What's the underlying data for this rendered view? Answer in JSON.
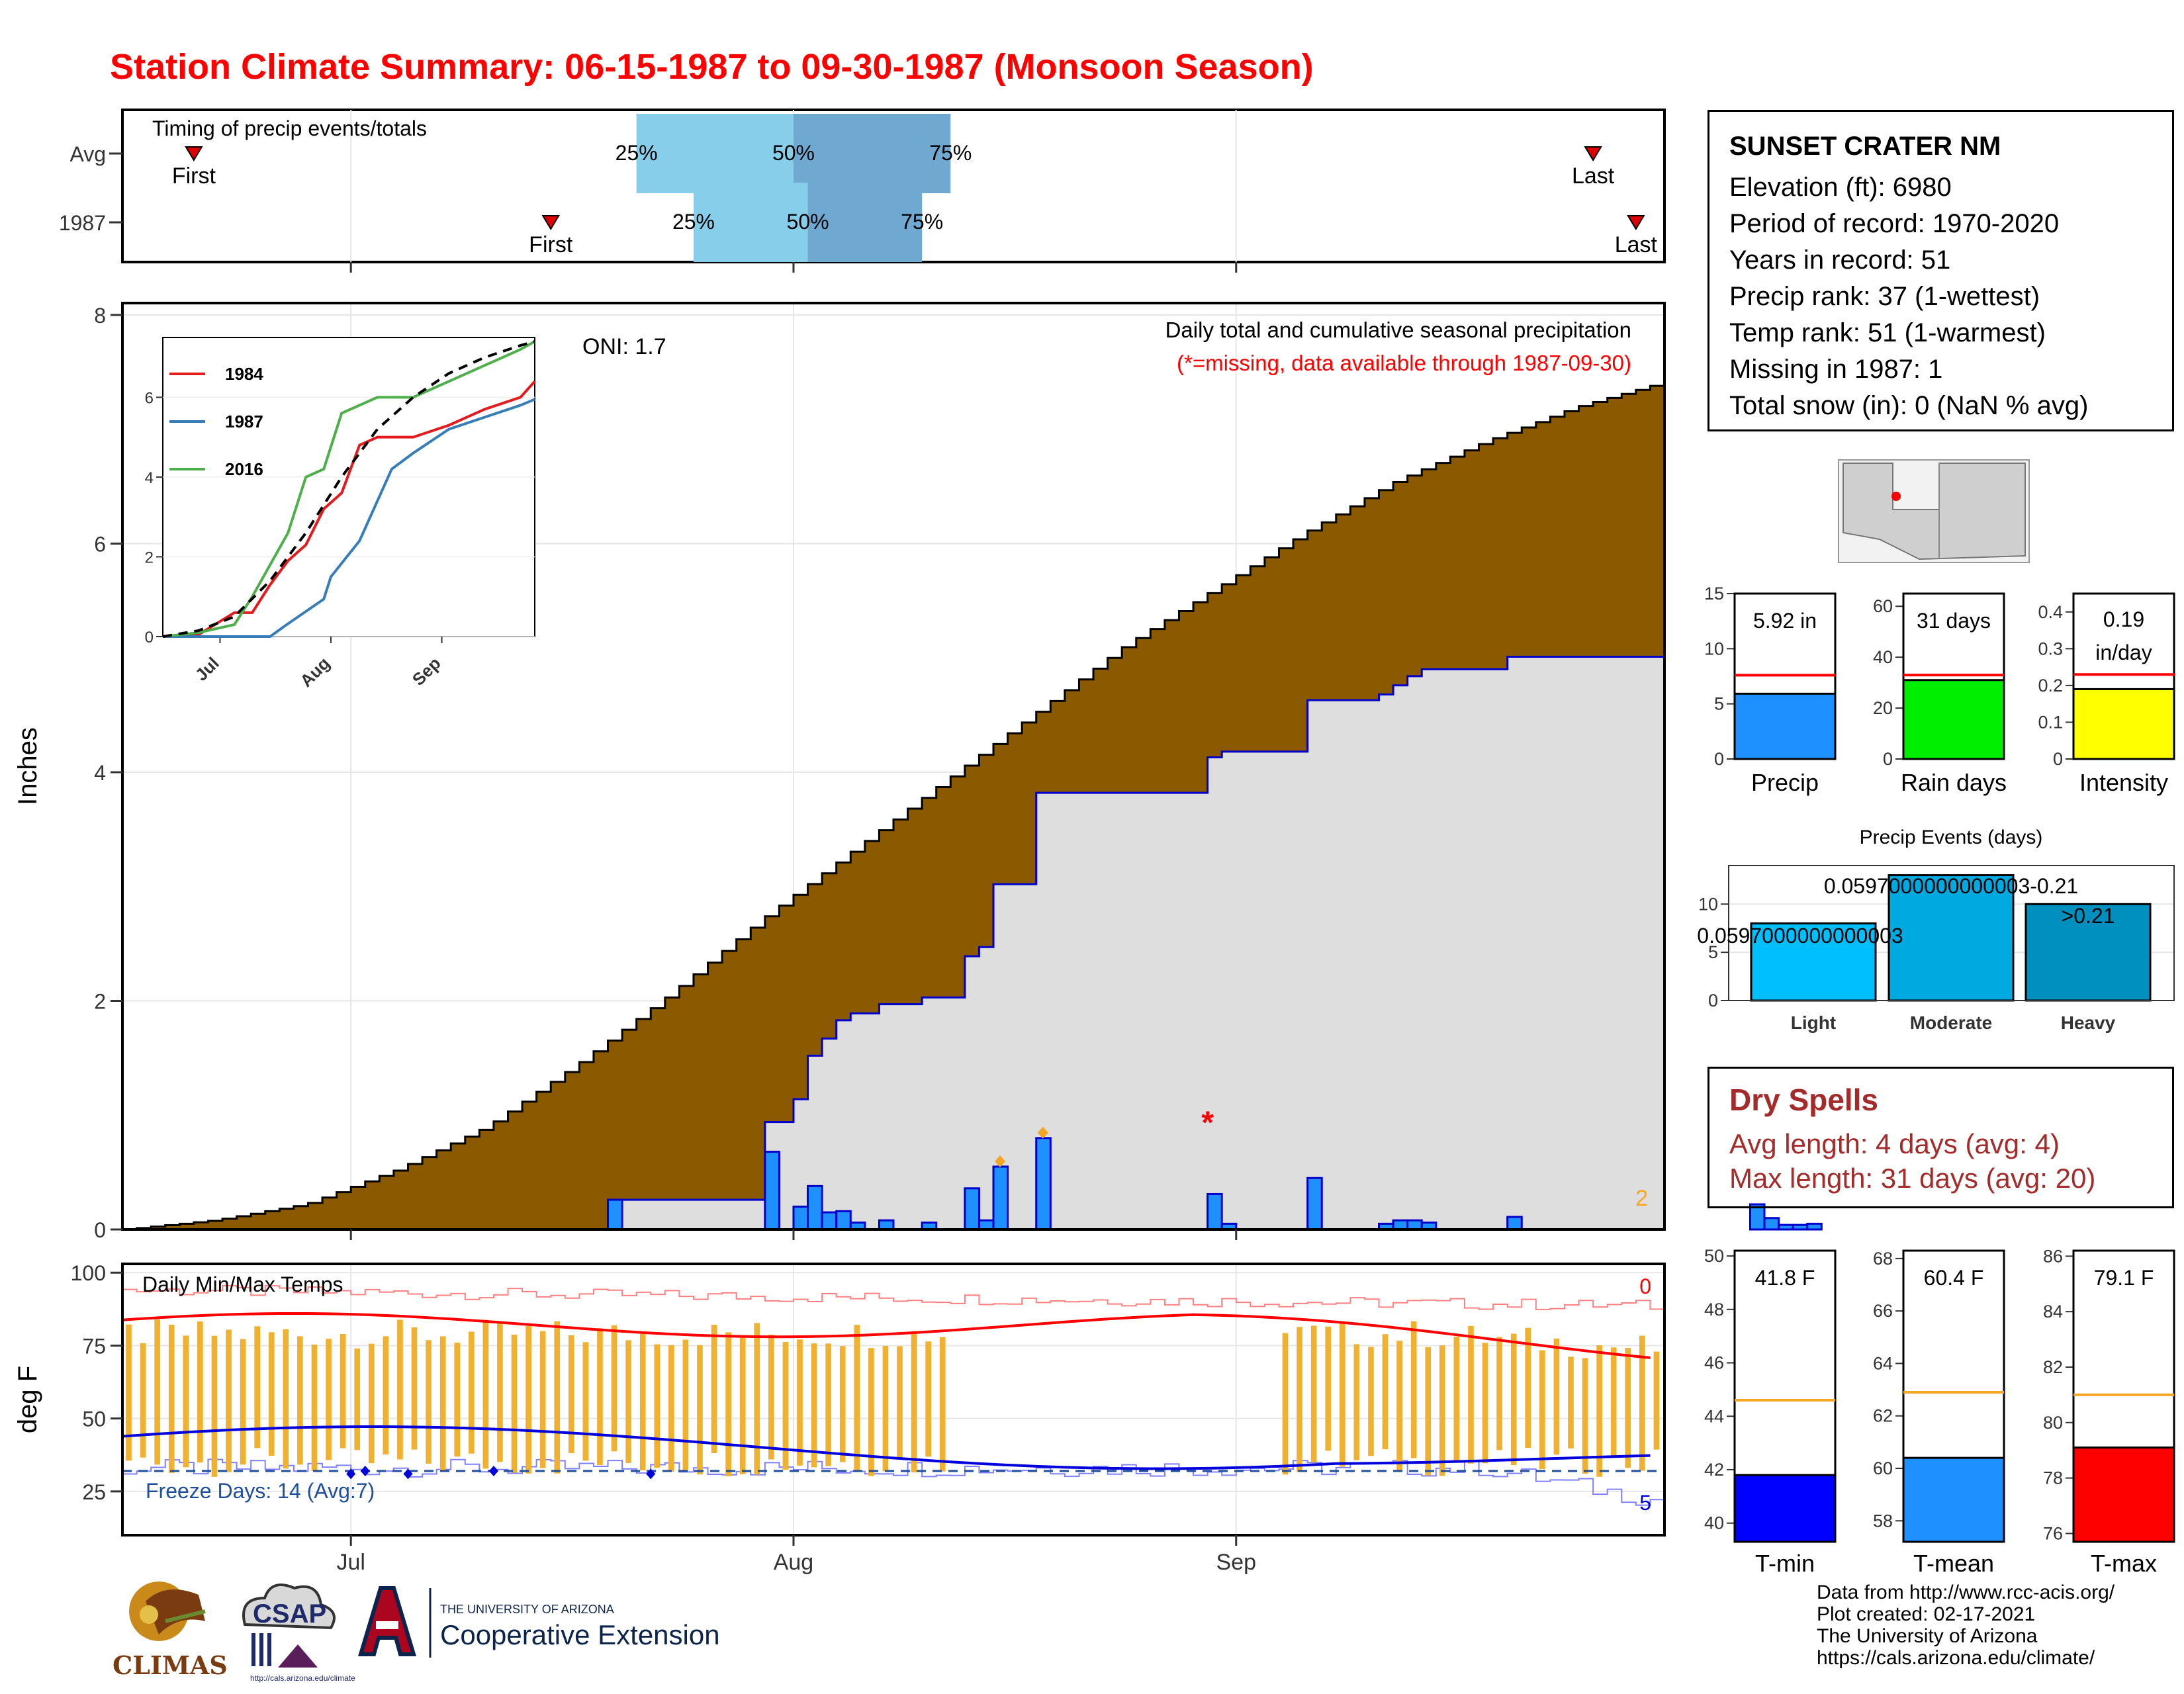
{
  "title": "Station Climate Summary: 06-15-1987 to 09-30-1987 (Monsoon Season)",
  "station": {
    "name": "SUNSET CRATER NM",
    "lines": [
      "Elevation (ft): 6980",
      "Period of record: 1970-2020",
      "Years in record: 51",
      "Precip rank: 37 (1-wettest)",
      "Temp rank: 51 (1-warmest)",
      "Missing in 1987: 1",
      "Total snow (in): 0 (NaN % avg)"
    ]
  },
  "dry_spells": {
    "heading": "Dry Spells",
    "avg_line": "Avg length: 4 days (avg: 4)",
    "max_line": "Max length: 31 days (avg: 20)"
  },
  "credits": [
    "Data from http://www.rcc-acis.org/",
    "Plot created: 02-17-2021",
    "The University of Arizona",
    "https://cals.arizona.edu/climate/"
  ],
  "logos": {
    "climas": "CLIMAS",
    "csap": "CSAP",
    "csap_url": "http://cals.arizona.edu/climate",
    "ua_top": "THE UNIVERSITY OF ARIZONA",
    "ua_bottom": "Cooperative Extension"
  },
  "colors": {
    "title": "#ff0000",
    "cumulative_avg": "#8b5a00",
    "cumulative_1987": "#dedede",
    "above_avg": "#1a8a1a",
    "daily_bar": "#1e90ff",
    "temp_bar": "#f0b030",
    "tmax_line": "#ff0000",
    "tmin_line": "#0000dd",
    "freeze_line": "#1f4e9c",
    "dry_text": "#a52a2a"
  },
  "chart_data": [
    {
      "id": "timing",
      "type": "bar",
      "title": "Timing of precip events/totals",
      "rows": [
        {
          "label": "Avg",
          "first": "06-20",
          "last": "09-26",
          "p25": "07-21",
          "p50": "08-01",
          "p75": "08-12"
        },
        {
          "label": "1987",
          "first": "07-15",
          "last": "09-29",
          "p25": "07-25",
          "p50": "08-02",
          "p75": "08-10"
        }
      ],
      "markers": {
        "first": "First",
        "last": "Last",
        "p25": "25%",
        "p50": "50%",
        "p75": "75%"
      }
    },
    {
      "id": "precip",
      "type": "area",
      "title": "Daily total and cumulative seasonal precipitation",
      "subtitle": "(*=missing, data available through 1987-09-30)",
      "ylabel": "Inches",
      "ylim": [
        0,
        8
      ],
      "yticks": [
        0,
        2,
        4,
        6,
        8
      ],
      "oni": "ONI: 1.7",
      "corner_count": "2",
      "missing_day": "08-30",
      "missing_y": 0.98,
      "avg_cumulative": [
        [
          0,
          0
        ],
        [
          10,
          0.08
        ],
        [
          20,
          0.22
        ],
        [
          30,
          0.52
        ],
        [
          40,
          0.9
        ],
        [
          50,
          1.45
        ],
        [
          60,
          2.05
        ],
        [
          70,
          2.7
        ],
        [
          80,
          3.3
        ],
        [
          90,
          3.9
        ],
        [
          100,
          4.5
        ],
        [
          110,
          5.1
        ],
        [
          120,
          5.6
        ],
        [
          130,
          6.1
        ],
        [
          140,
          6.55
        ],
        [
          150,
          6.9
        ],
        [
          160,
          7.2
        ],
        [
          168,
          7.38
        ]
      ],
      "daily_bars": [
        {
          "day": 34,
          "value": 0.26
        },
        {
          "day": 45,
          "value": 0.68
        },
        {
          "day": 47,
          "value": 0.2
        },
        {
          "day": 48,
          "value": 0.38
        },
        {
          "day": 49,
          "value": 0.15
        },
        {
          "day": 50,
          "value": 0.16
        },
        {
          "day": 51,
          "value": 0.06
        },
        {
          "day": 53,
          "value": 0.08
        },
        {
          "day": 56,
          "value": 0.06
        },
        {
          "day": 59,
          "value": 0.36
        },
        {
          "day": 60,
          "value": 0.08
        },
        {
          "day": 61,
          "value": 0.55
        },
        {
          "day": 64,
          "value": 0.8
        },
        {
          "day": 76,
          "value": 0.31
        },
        {
          "day": 77,
          "value": 0.05
        },
        {
          "day": 83,
          "value": 0.45
        },
        {
          "day": 88,
          "value": 0.05
        },
        {
          "day": 89,
          "value": 0.08
        },
        {
          "day": 90,
          "value": 0.08
        },
        {
          "day": 91,
          "value": 0.06
        },
        {
          "day": 97,
          "value": 0.11
        },
        {
          "day": 114,
          "value": 0.22
        },
        {
          "day": 115,
          "value": 0.1
        },
        {
          "day": 116,
          "value": 0.04
        },
        {
          "day": 117,
          "value": 0.04
        },
        {
          "day": 118,
          "value": 0.05
        }
      ],
      "gem_days": [
        61,
        64
      ]
    },
    {
      "id": "inset",
      "type": "line",
      "ylim": [
        0,
        7.5
      ],
      "yticks": [
        0,
        2,
        4,
        6
      ],
      "xticks": [
        "Jul",
        "Aug",
        "Sep"
      ],
      "series": [
        {
          "name": "1984",
          "color": "#e41a1c",
          "points": [
            [
              0,
              0
            ],
            [
              10,
              0.05
            ],
            [
              20,
              0.6
            ],
            [
              25,
              0.6
            ],
            [
              30,
              1.3
            ],
            [
              35,
              1.9
            ],
            [
              40,
              2.3
            ],
            [
              45,
              3.2
            ],
            [
              50,
              3.6
            ],
            [
              55,
              4.8
            ],
            [
              60,
              5.0
            ],
            [
              70,
              5.0
            ],
            [
              80,
              5.3
            ],
            [
              90,
              5.7
            ],
            [
              100,
              6.0
            ],
            [
              104,
              6.4
            ]
          ]
        },
        {
          "name": "1987",
          "color": "#377eb8",
          "points": [
            [
              0,
              0
            ],
            [
              30,
              0
            ],
            [
              34,
              0.26
            ],
            [
              45,
              0.94
            ],
            [
              47,
              1.5
            ],
            [
              55,
              2.4
            ],
            [
              60,
              3.4
            ],
            [
              64,
              4.2
            ],
            [
              70,
              4.6
            ],
            [
              80,
              5.2
            ],
            [
              90,
              5.5
            ],
            [
              100,
              5.8
            ],
            [
              104,
              5.95
            ]
          ]
        },
        {
          "name": "2016",
          "color": "#4daf4a",
          "points": [
            [
              0,
              0
            ],
            [
              10,
              0.1
            ],
            [
              20,
              0.3
            ],
            [
              25,
              1.0
            ],
            [
              30,
              1.8
            ],
            [
              35,
              2.6
            ],
            [
              40,
              4.0
            ],
            [
              45,
              4.2
            ],
            [
              50,
              5.6
            ],
            [
              55,
              5.8
            ],
            [
              60,
              6.0
            ],
            [
              70,
              6.0
            ],
            [
              80,
              6.4
            ],
            [
              90,
              6.8
            ],
            [
              100,
              7.2
            ],
            [
              104,
              7.4
            ]
          ]
        },
        {
          "name": "",
          "color": "#000000",
          "dashed": true,
          "points": [
            [
              0,
              0
            ],
            [
              10,
              0.15
            ],
            [
              20,
              0.5
            ],
            [
              30,
              1.4
            ],
            [
              40,
              2.6
            ],
            [
              50,
              4.0
            ],
            [
              60,
              5.2
            ],
            [
              70,
              6.0
            ],
            [
              80,
              6.6
            ],
            [
              90,
              7.0
            ],
            [
              100,
              7.3
            ],
            [
              104,
              7.4
            ]
          ]
        }
      ]
    },
    {
      "id": "temps",
      "type": "bar",
      "title": "Daily Min/Max Temps",
      "ylabel": "deg F",
      "ylim": [
        10,
        103
      ],
      "yticks": [
        25,
        50,
        75,
        100
      ],
      "xticks": [
        {
          "label": "Jul",
          "day": 16
        },
        {
          "label": "Aug",
          "day": 47
        },
        {
          "label": "Sep",
          "day": 78
        }
      ],
      "freeze_text": "Freeze Days: 14 (Avg:7)",
      "hot_count": "0",
      "cold_count": "5",
      "freeze_line": 32
    },
    {
      "id": "summary_precip",
      "type": "bar",
      "panels": [
        {
          "label": "Precip",
          "value_text": "5.92 in",
          "value": 5.92,
          "avg": 7.6,
          "ylim": [
            0,
            15
          ],
          "yticks": [
            0,
            5,
            10,
            15
          ],
          "color": "#1e90ff"
        },
        {
          "label": "Rain days",
          "value_text": "31 days",
          "value": 31,
          "avg": 33,
          "ylim": [
            0,
            65
          ],
          "yticks": [
            0,
            20,
            40,
            60
          ],
          "color": "#00ee00"
        },
        {
          "label": "Intensity",
          "value_text": "0.19 in/day",
          "value": 0.19,
          "avg": 0.23,
          "ylim": [
            0,
            0.45
          ],
          "yticks": [
            0.0,
            0.1,
            0.2,
            0.3,
            0.4
          ],
          "color": "#ffff00"
        }
      ]
    },
    {
      "id": "precip_events",
      "type": "bar",
      "title": "Precip Events (days)",
      "categories": [
        "Light",
        "Moderate",
        "Heavy"
      ],
      "values": [
        8,
        13,
        10
      ],
      "range_labels": [
        "0.0597000000000003",
        "0.0597000000000003-0.21",
        ">0.21"
      ],
      "ylim": [
        0,
        14
      ],
      "yticks": [
        0,
        5,
        10
      ]
    },
    {
      "id": "summary_temp",
      "type": "bar",
      "panels": [
        {
          "label": "T-min",
          "value_text": "41.8 F",
          "value": 41.8,
          "avg": 44.6,
          "ylim": [
            39.3,
            50.2
          ],
          "yticks": [
            40,
            42,
            44,
            46,
            48,
            50
          ],
          "color": "#0000ff"
        },
        {
          "label": "T-mean",
          "value_text": "60.4 F",
          "value": 60.4,
          "avg": 62.9,
          "ylim": [
            57.2,
            68.3
          ],
          "yticks": [
            58,
            60,
            62,
            64,
            66,
            68
          ],
          "color": "#1e90ff"
        },
        {
          "label": "T-max",
          "value_text": "79.1 F",
          "value": 79.1,
          "avg": 81.0,
          "ylim": [
            75.7,
            86.2
          ],
          "yticks": [
            76,
            78,
            80,
            82,
            84,
            86
          ],
          "color": "#ff0000"
        }
      ]
    }
  ]
}
